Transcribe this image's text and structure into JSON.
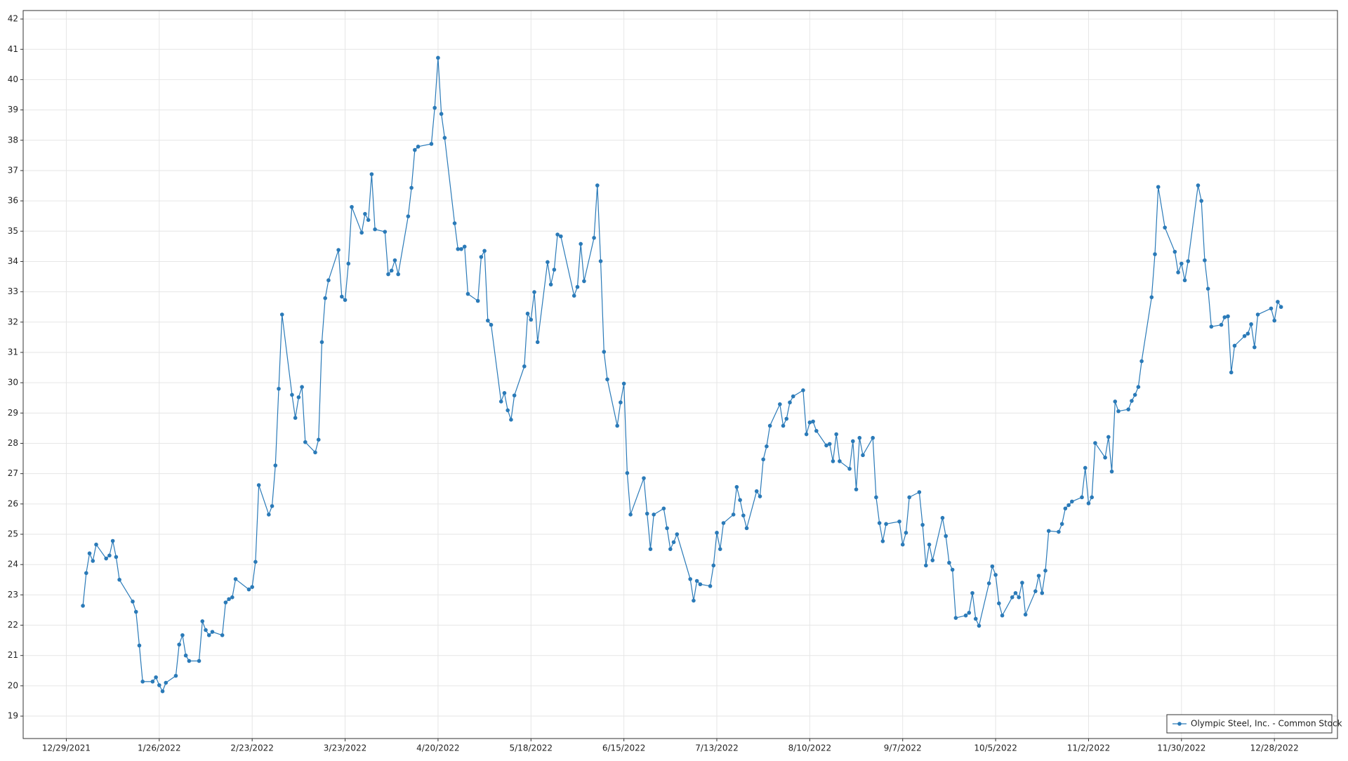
{
  "chart_data": {
    "type": "line",
    "x": [
      "1/3/2022",
      "1/4/2022",
      "1/5/2022",
      "1/6/2022",
      "1/7/2022",
      "1/10/2022",
      "1/11/2022",
      "1/12/2022",
      "1/13/2022",
      "1/14/2022",
      "1/18/2022",
      "1/19/2022",
      "1/20/2022",
      "1/21/2022",
      "1/24/2022",
      "1/25/2022",
      "1/26/2022",
      "1/27/2022",
      "1/28/2022",
      "1/31/2022",
      "2/1/2022",
      "2/2/2022",
      "2/3/2022",
      "2/4/2022",
      "2/7/2022",
      "2/8/2022",
      "2/9/2022",
      "2/10/2022",
      "2/11/2022",
      "2/14/2022",
      "2/15/2022",
      "2/16/2022",
      "2/17/2022",
      "2/18/2022",
      "2/22/2022",
      "2/23/2022",
      "2/24/2022",
      "2/25/2022",
      "2/28/2022",
      "3/1/2022",
      "3/2/2022",
      "3/3/2022",
      "3/4/2022",
      "3/7/2022",
      "3/8/2022",
      "3/9/2022",
      "3/10/2022",
      "3/11/2022",
      "3/14/2022",
      "3/15/2022",
      "3/16/2022",
      "3/17/2022",
      "3/18/2022",
      "3/21/2022",
      "3/22/2022",
      "3/23/2022",
      "3/24/2022",
      "3/25/2022",
      "3/28/2022",
      "3/29/2022",
      "3/30/2022",
      "3/31/2022",
      "4/1/2022",
      "4/4/2022",
      "4/5/2022",
      "4/6/2022",
      "4/7/2022",
      "4/8/2022",
      "4/11/2022",
      "4/12/2022",
      "4/13/2022",
      "4/14/2022",
      "4/18/2022",
      "4/19/2022",
      "4/20/2022",
      "4/21/2022",
      "4/22/2022",
      "4/25/2022",
      "4/26/2022",
      "4/27/2022",
      "4/28/2022",
      "4/29/2022",
      "5/2/2022",
      "5/3/2022",
      "5/4/2022",
      "5/5/2022",
      "5/6/2022",
      "5/9/2022",
      "5/10/2022",
      "5/11/2022",
      "5/12/2022",
      "5/13/2022",
      "5/16/2022",
      "5/17/2022",
      "5/18/2022",
      "5/19/2022",
      "5/20/2022",
      "5/23/2022",
      "5/24/2022",
      "5/25/2022",
      "5/26/2022",
      "5/27/2022",
      "5/31/2022",
      "6/1/2022",
      "6/2/2022",
      "6/3/2022",
      "6/6/2022",
      "6/7/2022",
      "6/8/2022",
      "6/9/2022",
      "6/10/2022",
      "6/13/2022",
      "6/14/2022",
      "6/15/2022",
      "6/16/2022",
      "6/17/2022",
      "6/21/2022",
      "6/22/2022",
      "6/23/2022",
      "6/24/2022",
      "6/27/2022",
      "6/28/2022",
      "6/29/2022",
      "6/30/2022",
      "7/1/2022",
      "7/5/2022",
      "7/6/2022",
      "7/7/2022",
      "7/8/2022",
      "7/11/2022",
      "7/12/2022",
      "7/13/2022",
      "7/14/2022",
      "7/15/2022",
      "7/18/2022",
      "7/19/2022",
      "7/20/2022",
      "7/21/2022",
      "7/22/2022",
      "7/25/2022",
      "7/26/2022",
      "7/27/2022",
      "7/28/2022",
      "7/29/2022",
      "8/1/2022",
      "8/2/2022",
      "8/3/2022",
      "8/4/2022",
      "8/5/2022",
      "8/8/2022",
      "8/9/2022",
      "8/10/2022",
      "8/11/2022",
      "8/12/2022",
      "8/15/2022",
      "8/16/2022",
      "8/17/2022",
      "8/18/2022",
      "8/19/2022",
      "8/22/2022",
      "8/23/2022",
      "8/24/2022",
      "8/25/2022",
      "8/26/2022",
      "8/29/2022",
      "8/30/2022",
      "8/31/2022",
      "9/1/2022",
      "9/2/2022",
      "9/6/2022",
      "9/7/2022",
      "9/8/2022",
      "9/9/2022",
      "9/12/2022",
      "9/13/2022",
      "9/14/2022",
      "9/15/2022",
      "9/16/2022",
      "9/19/2022",
      "9/20/2022",
      "9/21/2022",
      "9/22/2022",
      "9/23/2022",
      "9/26/2022",
      "9/27/2022",
      "9/28/2022",
      "9/29/2022",
      "9/30/2022",
      "10/3/2022",
      "10/4/2022",
      "10/5/2022",
      "10/6/2022",
      "10/7/2022",
      "10/10/2022",
      "10/11/2022",
      "10/12/2022",
      "10/13/2022",
      "10/14/2022",
      "10/17/2022",
      "10/18/2022",
      "10/19/2022",
      "10/20/2022",
      "10/21/2022",
      "10/24/2022",
      "10/25/2022",
      "10/26/2022",
      "10/27/2022",
      "10/28/2022",
      "10/31/2022",
      "11/1/2022",
      "11/2/2022",
      "11/3/2022",
      "11/4/2022",
      "11/7/2022",
      "11/8/2022",
      "11/9/2022",
      "11/10/2022",
      "11/11/2022",
      "11/14/2022",
      "11/15/2022",
      "11/16/2022",
      "11/17/2022",
      "11/18/2022",
      "11/21/2022",
      "11/22/2022",
      "11/23/2022",
      "11/25/2022",
      "11/28/2022",
      "11/29/2022",
      "11/30/2022",
      "12/1/2022",
      "12/2/2022",
      "12/5/2022",
      "12/6/2022",
      "12/7/2022",
      "12/8/2022",
      "12/9/2022",
      "12/12/2022",
      "12/13/2022",
      "12/14/2022",
      "12/15/2022",
      "12/16/2022",
      "12/19/2022",
      "12/20/2022",
      "12/21/2022",
      "12/22/2022",
      "12/23/2022",
      "12/27/2022",
      "12/28/2022",
      "12/29/2022",
      "12/30/2022"
    ],
    "series": [
      {
        "name": "Olympic Steel, Inc. - Common Stock",
        "color": "#2a7ab8",
        "values": [
          22.64,
          23.72,
          24.37,
          24.12,
          24.66,
          24.2,
          24.3,
          24.78,
          24.25,
          23.5,
          22.78,
          22.44,
          21.33,
          20.14,
          20.14,
          20.28,
          20.02,
          19.82,
          20.1,
          20.33,
          21.36,
          21.67,
          21.0,
          20.82,
          20.82,
          22.13,
          21.84,
          21.67,
          21.78,
          21.67,
          22.75,
          22.86,
          22.92,
          23.52,
          23.18,
          23.26,
          24.09,
          26.62,
          25.65,
          25.93,
          27.27,
          29.8,
          32.25,
          29.6,
          28.84,
          29.52,
          29.86,
          28.04,
          27.7,
          28.12,
          31.34,
          32.79,
          33.38,
          34.38,
          32.84,
          32.73,
          33.93,
          35.8,
          34.95,
          35.57,
          35.37,
          36.88,
          35.06,
          34.98,
          33.58,
          33.7,
          34.04,
          33.58,
          35.49,
          36.43,
          37.68,
          37.79,
          37.88,
          39.07,
          40.72,
          38.87,
          38.08,
          35.26,
          34.41,
          34.41,
          34.49,
          32.93,
          32.7,
          34.15,
          34.35,
          32.05,
          31.91,
          29.38,
          29.66,
          29.09,
          28.78,
          29.58,
          30.54,
          32.28,
          32.08,
          32.99,
          31.34,
          33.98,
          33.24,
          33.73,
          34.89,
          34.83,
          32.87,
          33.16,
          34.58,
          33.35,
          34.78,
          36.51,
          34.01,
          31.02,
          30.11,
          28.58,
          29.35,
          29.97,
          27.02,
          25.65,
          26.85,
          25.68,
          24.51,
          25.65,
          25.85,
          25.2,
          24.51,
          24.74,
          25.0,
          23.52,
          22.81,
          23.46,
          23.35,
          23.29,
          23.97,
          25.05,
          24.51,
          25.37,
          25.65,
          26.56,
          26.13,
          25.62,
          25.2,
          26.42,
          26.25,
          27.47,
          27.9,
          28.58,
          29.29,
          28.58,
          28.81,
          29.35,
          29.55,
          29.75,
          28.3,
          28.69,
          28.72,
          28.41,
          27.93,
          27.98,
          27.41,
          28.3,
          27.41,
          27.16,
          28.07,
          26.48,
          28.18,
          27.61,
          28.18,
          26.22,
          25.37,
          24.77,
          25.34,
          25.42,
          24.66,
          25.05,
          26.22,
          26.39,
          25.31,
          23.97,
          24.66,
          24.14,
          25.54,
          24.94,
          24.06,
          23.83,
          22.24,
          22.32,
          22.41,
          23.06,
          22.21,
          21.98,
          23.38,
          23.94,
          23.66,
          22.72,
          22.32,
          22.92,
          23.06,
          22.92,
          23.4,
          22.35,
          23.12,
          23.63,
          23.06,
          23.8,
          25.11,
          25.08,
          25.34,
          25.85,
          25.96,
          26.08,
          26.22,
          27.19,
          26.02,
          26.22,
          28.01,
          27.53,
          28.21,
          27.07,
          29.38,
          29.06,
          29.12,
          29.4,
          29.6,
          29.86,
          30.71,
          32.82,
          34.24,
          36.46,
          35.12,
          34.32,
          33.64,
          33.93,
          33.38,
          34.01,
          36.51,
          36.0,
          34.04,
          33.1,
          31.85,
          31.91,
          32.16,
          32.19,
          30.34,
          31.22,
          31.54,
          31.62,
          31.93,
          31.17,
          32.25,
          32.45,
          32.05,
          32.67,
          32.5
        ]
      }
    ],
    "xlim": [
      "12/16/2021",
      "1/16/2023"
    ],
    "xticks": [
      "12/29/2021",
      "1/26/2022",
      "2/23/2022",
      "3/23/2022",
      "4/20/2022",
      "5/18/2022",
      "6/15/2022",
      "7/13/2022",
      "8/10/2022",
      "9/7/2022",
      "10/5/2022",
      "11/2/2022",
      "11/30/2022",
      "12/28/2022"
    ],
    "ylim": [
      18.26,
      42.28
    ],
    "yticks": [
      19,
      20,
      21,
      22,
      23,
      24,
      25,
      26,
      27,
      28,
      29,
      30,
      31,
      32,
      33,
      34,
      35,
      36,
      37,
      38,
      39,
      40,
      41,
      42
    ],
    "grid": true,
    "legend": "lower right"
  }
}
